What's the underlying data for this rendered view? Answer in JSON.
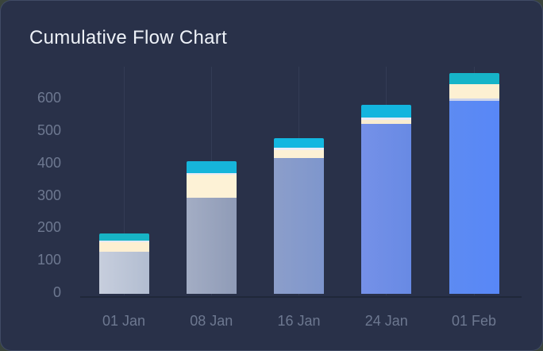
{
  "window": {
    "title": "Cumulative Flow Chart"
  },
  "colors": {
    "outer_background": "#3a443c",
    "card_background": "#293149",
    "title_text": "#eef2f8",
    "axis_text": "#6d7890",
    "gridline": "#333c55",
    "axis_line": "#20283a"
  },
  "chart_data": {
    "type": "bar",
    "stacked": true,
    "title": "Cumulative Flow Chart",
    "xlabel": "",
    "ylabel": "",
    "categories": [
      "01 Jan",
      "08 Jan",
      "16 Jan",
      "24 Jan",
      "01 Feb"
    ],
    "y_ticks": [
      0,
      100,
      200,
      300,
      400,
      500,
      600
    ],
    "ylim": [
      0,
      700
    ],
    "grid": "vertical-only",
    "legend": "none",
    "totals": [
      185,
      407,
      478,
      581,
      677
    ],
    "bars": [
      {
        "category": "01 Jan",
        "total": 185,
        "segments": [
          {
            "name": "base",
            "value": 130,
            "color_left": "#c7cedd",
            "color_right": "#b2bdd1"
          },
          {
            "name": "band-cream",
            "value": 28,
            "color": "#fdefd1"
          },
          {
            "name": "band-white",
            "value": 6,
            "color": "#e7eaf4"
          },
          {
            "name": "band-cyan",
            "value": 21,
            "color": "#17b4c5"
          }
        ]
      },
      {
        "category": "08 Jan",
        "total": 407,
        "segments": [
          {
            "name": "base",
            "value": 294,
            "color_left": "#a3adc4",
            "color_right": "#8f9bb7"
          },
          {
            "name": "band-cream",
            "value": 71,
            "color": "#fdf2d6"
          },
          {
            "name": "band-white",
            "value": 5,
            "color": "#e7eaf4"
          },
          {
            "name": "band-cyan",
            "value": 37,
            "color": "#16b5da"
          }
        ]
      },
      {
        "category": "16 Jan",
        "total": 478,
        "segments": [
          {
            "name": "base",
            "value": 417,
            "color_left": "#8c9eca",
            "color_right": "#7e96cd"
          },
          {
            "name": "band-cream",
            "value": 25,
            "color": "#fdf1d5"
          },
          {
            "name": "band-white",
            "value": 7,
            "color": "#e9ecf6"
          },
          {
            "name": "band-cyan",
            "value": 29,
            "color": "#12b7e0"
          }
        ]
      },
      {
        "category": "24 Jan",
        "total": 581,
        "segments": [
          {
            "name": "base",
            "value": 522,
            "color_left": "#7591e8",
            "color_right": "#688ae4"
          },
          {
            "name": "band-cream",
            "value": 12,
            "color": "#f8ecd0"
          },
          {
            "name": "band-white",
            "value": 8,
            "color": "#e7eaf4"
          },
          {
            "name": "band-cyan",
            "value": 39,
            "color": "#13b5de"
          }
        ]
      },
      {
        "category": "01 Feb",
        "total": 677,
        "segments": [
          {
            "name": "base",
            "value": 593,
            "color_left": "#5d8bf2",
            "color_right": "#5887f7"
          },
          {
            "name": "band-white",
            "value": 6,
            "color": "#ccd3ec"
          },
          {
            "name": "band-cream",
            "value": 44,
            "color": "#fdf0d2"
          },
          {
            "name": "band-cyan",
            "value": 34,
            "color": "#16b4c8"
          }
        ]
      }
    ]
  }
}
